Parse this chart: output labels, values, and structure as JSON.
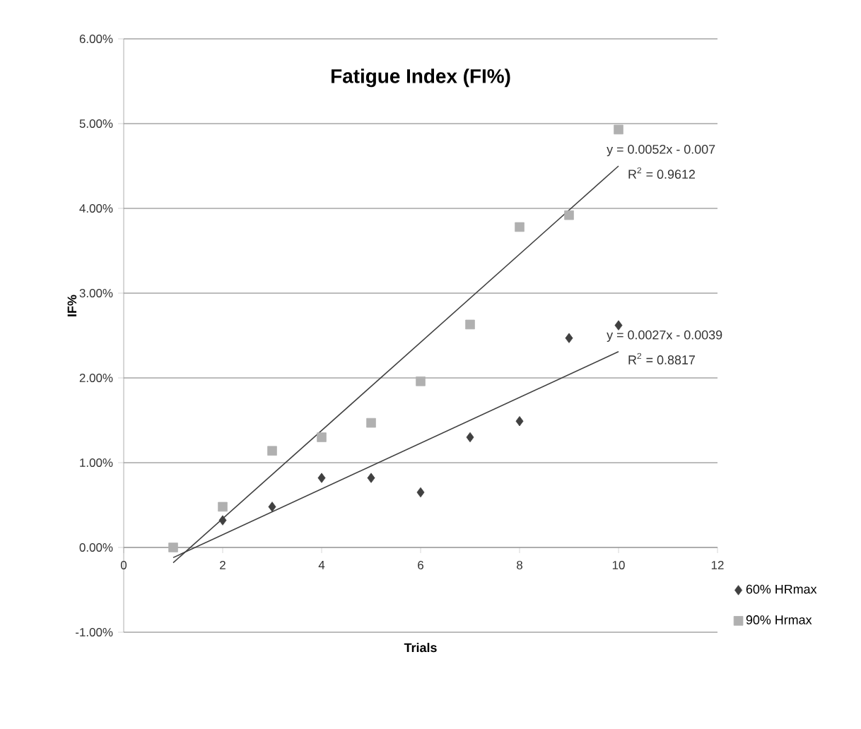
{
  "chart_data": {
    "type": "scatter",
    "title": "Fatigue Index (FI%)",
    "xlabel": "Trials",
    "ylabel": "IF%",
    "xlim": [
      0,
      12
    ],
    "xticks": [
      0,
      2,
      4,
      6,
      8,
      10,
      12
    ],
    "ylim": [
      -1,
      6
    ],
    "yticks": [
      {
        "value": -1,
        "label": "-1.00%"
      },
      {
        "value": 0,
        "label": "0.00%"
      },
      {
        "value": 1,
        "label": "1.00%"
      },
      {
        "value": 2,
        "label": "2.00%"
      },
      {
        "value": 3,
        "label": "3.00%"
      },
      {
        "value": 4,
        "label": "4.00%"
      },
      {
        "value": 5,
        "label": "5.00%"
      },
      {
        "value": 6,
        "label": "6.00%"
      }
    ],
    "grid": "y",
    "legend": "bottom right",
    "series": [
      {
        "name": "60% HRmax",
        "marker": "diamond",
        "color": "#404040",
        "x": [
          2,
          3,
          4,
          5,
          6,
          7,
          8,
          9,
          10
        ],
        "values": [
          0.32,
          0.48,
          0.82,
          0.82,
          0.65,
          1.3,
          1.49,
          2.47,
          2.62
        ]
      },
      {
        "name": "90% Hrmax",
        "marker": "square",
        "color": "#b0b0b0",
        "x": [
          1,
          2,
          3,
          4,
          5,
          6,
          7,
          8,
          9,
          10
        ],
        "values": [
          0.0,
          0.48,
          1.14,
          1.3,
          1.47,
          1.96,
          2.63,
          3.78,
          3.92,
          4.93
        ]
      },
      {
        "type": "line",
        "marker": "none",
        "line_style": "solid",
        "color": "#404040",
        "x": [
          1,
          10
        ],
        "values": [
          -0.18,
          4.5
        ]
      },
      {
        "type": "line",
        "marker": "none",
        "line_style": "solid",
        "color": "#404040",
        "x": [
          1,
          10
        ],
        "values": [
          -0.12,
          2.31
        ]
      }
    ],
    "annotations": [
      "y = 0.0052x - 0.007",
      "R$^{2}$ = 0.9612",
      "y = 0.0027x - 0.0039",
      "R$^{2}$ = 0.8817"
    ]
  }
}
